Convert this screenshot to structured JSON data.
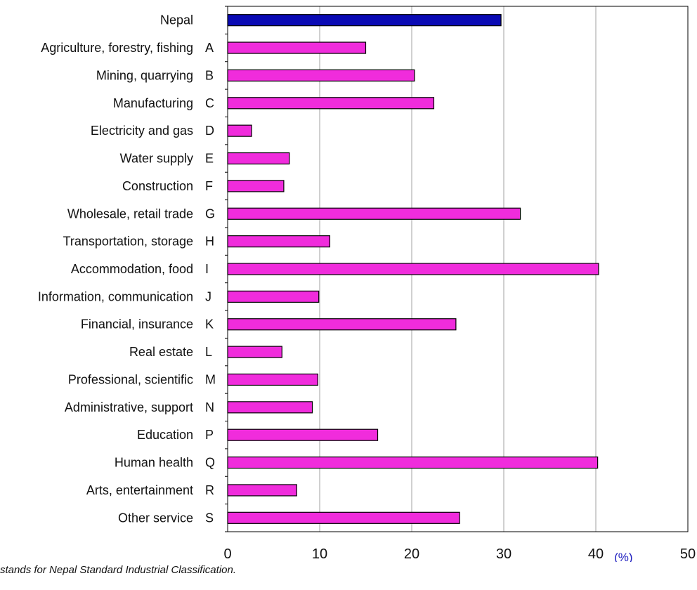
{
  "chart_data": {
    "type": "bar",
    "orientation": "horizontal",
    "categories": [
      {
        "name": "Nepal",
        "code": ""
      },
      {
        "name": "Agriculture, forestry, fishing",
        "code": "A"
      },
      {
        "name": "Mining, quarrying",
        "code": "B"
      },
      {
        "name": "Manufacturing",
        "code": "C"
      },
      {
        "name": "Electricity and gas",
        "code": "D"
      },
      {
        "name": "Water supply",
        "code": "E"
      },
      {
        "name": "Construction",
        "code": "F"
      },
      {
        "name": "Wholesale, retail trade",
        "code": "G"
      },
      {
        "name": "Transportation, storage",
        "code": "H"
      },
      {
        "name": "Accommodation, food",
        "code": "I"
      },
      {
        "name": "Information, communication",
        "code": "J"
      },
      {
        "name": "Financial, insurance",
        "code": "K"
      },
      {
        "name": "Real estate",
        "code": "L"
      },
      {
        "name": "Professional, scientific",
        "code": "M"
      },
      {
        "name": "Administrative, support",
        "code": "N"
      },
      {
        "name": "Education",
        "code": "P"
      },
      {
        "name": "Human health",
        "code": "Q"
      },
      {
        "name": "Arts, entertainment",
        "code": "R"
      },
      {
        "name": "Other service",
        "code": "S"
      }
    ],
    "values": [
      29.7,
      15.0,
      20.3,
      22.4,
      2.6,
      6.7,
      6.1,
      31.8,
      11.1,
      40.3,
      9.9,
      24.8,
      5.9,
      9.8,
      9.2,
      16.3,
      40.2,
      7.5,
      25.2
    ],
    "highlight_index": 0,
    "colors": {
      "highlight": "#0a0ab4",
      "bar": "#f02cdc",
      "bar_edge": "#000000",
      "grid": "#a0a0a0",
      "unit": "#2020c0"
    },
    "xlim": [
      0,
      50
    ],
    "xticks": [
      0,
      10,
      20,
      30,
      40,
      50
    ],
    "unit_label": "(%)",
    "grid": true,
    "legend": "none"
  },
  "footnote": "stands for Nepal Standard Industrial Classification."
}
